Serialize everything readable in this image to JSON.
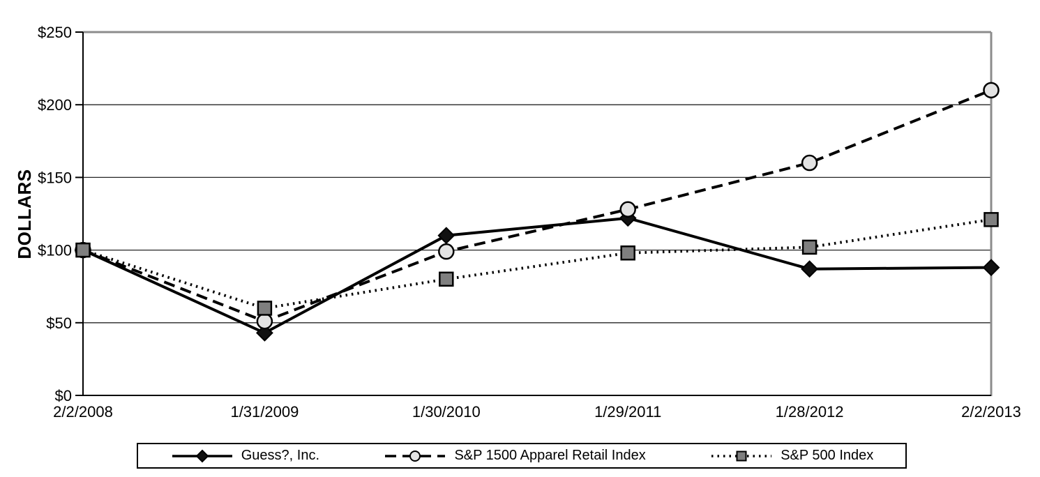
{
  "chart_data": {
    "type": "line",
    "title": "",
    "xlabel": "",
    "ylabel": "DOLLARS",
    "ylim": [
      0,
      250
    ],
    "grid": "horizontal",
    "legend_position": "bottom",
    "y_ticks": [
      {
        "value": 0,
        "label": "$0"
      },
      {
        "value": 50,
        "label": "$50"
      },
      {
        "value": 100,
        "label": "$100"
      },
      {
        "value": 150,
        "label": "$150"
      },
      {
        "value": 200,
        "label": "$200"
      },
      {
        "value": 250,
        "label": "$250"
      }
    ],
    "categories": [
      "2/2/2008",
      "1/31/2009",
      "1/30/2010",
      "1/29/2011",
      "1/28/2012",
      "2/2/2013"
    ],
    "series": [
      {
        "name": "Guess?, Inc.",
        "values": [
          100,
          43,
          110,
          122,
          87,
          88
        ],
        "line_style": "solid",
        "marker": "diamond",
        "line_color": "#000000",
        "marker_fill": "#111111",
        "marker_stroke": "#000000"
      },
      {
        "name": "S&P 1500 Apparel Retail Index",
        "values": [
          100,
          51,
          99,
          128,
          160,
          210
        ],
        "line_style": "dashed",
        "marker": "circle",
        "line_color": "#000000",
        "marker_fill": "#e3e3e3",
        "marker_stroke": "#000000"
      },
      {
        "name": "S&P 500 Index",
        "values": [
          100,
          60,
          80,
          98,
          102,
          121
        ],
        "line_style": "dotted",
        "marker": "square",
        "line_color": "#000000",
        "marker_fill": "#7f7f7f",
        "marker_stroke": "#000000"
      }
    ],
    "colors": {
      "axis": "#000000",
      "gridline": "#262626",
      "border_gray": "#8c8c8c",
      "background": "#ffffff",
      "legend_border": "#000000"
    }
  }
}
